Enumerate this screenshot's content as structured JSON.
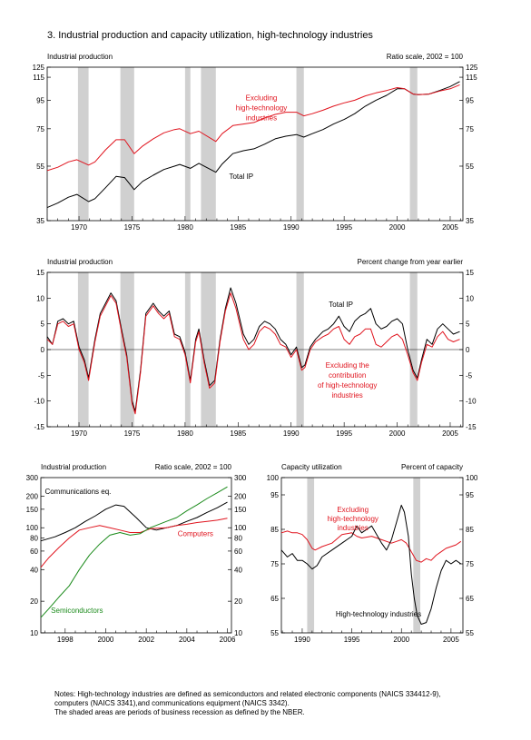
{
  "figure": {
    "title": "3.  Industrial production and capacity utilization, high-technology industries"
  },
  "colors": {
    "total": "#000000",
    "excluding": "#e0141e",
    "semis": "#1a8a1a",
    "recession": "#d0d0d0"
  },
  "notes": {
    "line1": "Notes:  High-technology industries are defined as semiconductors and related electronic components (NAICS 334412-9),",
    "line2": "computers (NAICS 3341),and communications equipment (NAICS 3342).",
    "line3": "The shaded areas are periods of business recession as defined by the NBER."
  },
  "chart_data": [
    {
      "type": "line",
      "title": "Industrial production",
      "subtitle": "Ratio scale, 2002 = 100",
      "yscale": "log",
      "xlim": [
        1967,
        2006.2
      ],
      "ylim": [
        35,
        125
      ],
      "yticks": [
        35,
        55,
        75,
        95,
        115,
        125
      ],
      "xticks": [
        1970,
        1975,
        1980,
        1985,
        1990,
        1995,
        2000,
        2005
      ],
      "recessions": [
        [
          1969.9,
          1970.9
        ],
        [
          1973.9,
          1975.2
        ],
        [
          1980.0,
          1980.5
        ],
        [
          1981.5,
          1982.9
        ],
        [
          1990.5,
          1991.2
        ],
        [
          2001.2,
          2001.9
        ]
      ],
      "annotations": [
        "Excluding",
        "high-technology",
        "industries",
        "Total IP"
      ],
      "series": [
        {
          "name": "Total IP",
          "color": "#000000",
          "x": [
            1967,
            1968,
            1969,
            1969.8,
            1970.9,
            1971.5,
            1972.5,
            1973.5,
            1974.3,
            1975.2,
            1976,
            1977,
            1978,
            1979,
            1979.5,
            1980.5,
            1981.3,
            1982.9,
            1983.5,
            1984.5,
            1985.5,
            1986.5,
            1987.5,
            1988.5,
            1989.5,
            1990.5,
            1991.2,
            1992,
            1993,
            1994,
            1995,
            1996,
            1997,
            1998,
            1999,
            2000,
            2000.7,
            2001.5,
            2002,
            2003,
            2004,
            2005,
            2005.9
          ],
          "y": [
            39,
            40.5,
            42.5,
            43.5,
            41,
            42,
            46,
            50.5,
            50,
            45.3,
            48.5,
            51,
            53.5,
            55,
            55.8,
            54,
            56.3,
            52.3,
            56,
            61,
            62.5,
            63.5,
            66,
            69,
            70.5,
            71.5,
            70,
            72,
            74.5,
            78,
            81,
            85,
            90.5,
            95,
            99,
            104.5,
            104.5,
            100,
            99.5,
            100,
            103,
            106.5,
            111
          ]
        },
        {
          "name": "Excluding high-technology industries",
          "color": "#e0141e",
          "x": [
            1967,
            1968,
            1969,
            1969.8,
            1970.9,
            1971.5,
            1972.5,
            1973.5,
            1974.3,
            1975.2,
            1976,
            1977,
            1978,
            1979,
            1979.5,
            1980.5,
            1981.3,
            1982.9,
            1983.5,
            1984.5,
            1985.5,
            1986.5,
            1987.5,
            1988.5,
            1989.5,
            1990.5,
            1991.2,
            1992,
            1993,
            1994,
            1995,
            1996,
            1997,
            1998,
            1999,
            2000,
            2000.7,
            2001.5,
            2002,
            2003,
            2004,
            2005,
            2005.9
          ],
          "y": [
            53,
            54.5,
            57,
            58,
            55.5,
            57,
            63,
            68.5,
            68.5,
            61,
            65,
            69,
            72.5,
            74.5,
            75,
            72,
            73.5,
            67.5,
            72,
            77,
            78,
            79,
            82,
            84.5,
            86,
            86,
            83.5,
            85,
            87.5,
            90.5,
            93,
            95,
            98.5,
            101,
            103,
            105.5,
            104.5,
            100,
            99.5,
            100,
            102.5,
            104.5,
            108
          ]
        }
      ]
    },
    {
      "type": "line",
      "title": "Industrial production",
      "subtitle": "Percent change from year earlier",
      "xlim": [
        1967,
        2006.2
      ],
      "ylim": [
        -15,
        15
      ],
      "yticks": [
        -15,
        -10,
        -5,
        0,
        5,
        10,
        15
      ],
      "xticks": [
        1970,
        1975,
        1980,
        1985,
        1990,
        1995,
        2000,
        2005
      ],
      "recessions": [
        [
          1969.9,
          1970.9
        ],
        [
          1973.9,
          1975.2
        ],
        [
          1980.0,
          1980.5
        ],
        [
          1981.5,
          1982.9
        ],
        [
          1990.5,
          1991.2
        ],
        [
          2001.2,
          2001.9
        ]
      ],
      "annotations": [
        "Total IP",
        "Excluding the",
        "contribution",
        "of high-technology",
        "industries"
      ],
      "series": [
        {
          "name": "Total IP",
          "color": "#000000",
          "x": [
            1967,
            1967.5,
            1968,
            1968.5,
            1969,
            1969.5,
            1970,
            1970.5,
            1970.9,
            1971.5,
            1972,
            1972.5,
            1973,
            1973.5,
            1974,
            1974.5,
            1975,
            1975.3,
            1975.8,
            1976.3,
            1977,
            1977.5,
            1978,
            1978.5,
            1979,
            1979.5,
            1980,
            1980.5,
            1981,
            1981.3,
            1981.8,
            1982.3,
            1982.8,
            1983.3,
            1983.8,
            1984.3,
            1984.8,
            1985.5,
            1986,
            1986.5,
            1987,
            1987.5,
            1988,
            1988.5,
            1989,
            1989.5,
            1990,
            1990.5,
            1991,
            1991.3,
            1991.8,
            1992.3,
            1993,
            1993.5,
            1994,
            1994.5,
            1995,
            1995.5,
            1996,
            1996.5,
            1997,
            1997.5,
            1998,
            1998.5,
            1999,
            1999.5,
            2000,
            2000.5,
            2001,
            2001.5,
            2001.9,
            2002.3,
            2002.8,
            2003.3,
            2003.8,
            2004.3,
            2004.8,
            2005.3,
            2005.9
          ],
          "y": [
            2.5,
            1,
            5.5,
            6,
            5,
            5.5,
            0.5,
            -2,
            -5.5,
            2,
            7,
            9,
            11,
            9.5,
            4,
            -1,
            -10,
            -12,
            -4,
            7,
            9,
            7.5,
            6.5,
            7.5,
            3,
            2.5,
            -0.5,
            -6,
            2,
            4,
            -2,
            -7,
            -6,
            2,
            8,
            12,
            9,
            3,
            1,
            2,
            4.5,
            5.5,
            5,
            4,
            2,
            1,
            -1,
            0.5,
            -3.5,
            -3,
            0.5,
            2,
            3.5,
            4,
            5,
            6.5,
            4.5,
            3.5,
            5.5,
            6.5,
            7,
            8,
            5,
            4,
            4.5,
            5.5,
            6,
            5,
            0,
            -4,
            -5.5,
            -2,
            2,
            1,
            4,
            5,
            4,
            3,
            3.5
          ]
        },
        {
          "name": "Excluding the contribution of high-technology industries",
          "color": "#e0141e",
          "x": [
            1967,
            1967.5,
            1968,
            1968.5,
            1969,
            1969.5,
            1970,
            1970.5,
            1970.9,
            1971.5,
            1972,
            1972.5,
            1973,
            1973.5,
            1974,
            1974.5,
            1975,
            1975.3,
            1975.8,
            1976.3,
            1977,
            1977.5,
            1978,
            1978.5,
            1979,
            1979.5,
            1980,
            1980.5,
            1981,
            1981.3,
            1981.8,
            1982.3,
            1982.8,
            1983.3,
            1983.8,
            1984.3,
            1984.8,
            1985.5,
            1986,
            1986.5,
            1987,
            1987.5,
            1988,
            1988.5,
            1989,
            1989.5,
            1990,
            1990.5,
            1991,
            1991.3,
            1991.8,
            1992.3,
            1993,
            1993.5,
            1994,
            1994.5,
            1995,
            1995.5,
            1996,
            1996.5,
            1997,
            1997.5,
            1998,
            1998.5,
            1999,
            1999.5,
            2000,
            2000.5,
            2001,
            2001.5,
            2001.9,
            2002.3,
            2002.8,
            2003.3,
            2003.8,
            2004.3,
            2004.8,
            2005.3,
            2005.9
          ],
          "y": [
            2,
            1,
            5,
            5.5,
            4.5,
            5,
            0,
            -2.5,
            -6,
            1.5,
            6.5,
            8.5,
            10.5,
            9,
            3.5,
            -1.5,
            -10.5,
            -12.5,
            -4.5,
            6.5,
            8.5,
            7,
            6,
            7,
            2.5,
            2,
            -1,
            -6.5,
            1.5,
            3.5,
            -2.5,
            -7.5,
            -6.5,
            1.5,
            7.5,
            11,
            8,
            2,
            0,
            1,
            3.5,
            4.5,
            4,
            3,
            1,
            0.5,
            -1.5,
            0,
            -4,
            -3.5,
            0,
            1.5,
            2.5,
            3,
            4,
            4.5,
            2,
            1,
            2.5,
            3,
            4,
            4,
            1,
            0.5,
            1.5,
            2.5,
            3,
            2,
            -1,
            -4.5,
            -6,
            -2.5,
            1,
            0.5,
            2.5,
            3.5,
            2,
            1.5,
            2
          ]
        }
      ]
    },
    {
      "type": "line",
      "title": "Industrial production",
      "subtitle": "Ratio scale, 2002 = 100",
      "yscale": "log",
      "xlim": [
        1996.8,
        2006.2
      ],
      "ylim": [
        10,
        300
      ],
      "yticks": [
        10,
        20,
        40,
        60,
        80,
        100,
        150,
        200,
        300
      ],
      "xticks": [
        1998,
        2000,
        2002,
        2004,
        2006
      ],
      "series": [
        {
          "name": "Communications eq.",
          "color": "#000000",
          "x": [
            1996.8,
            1997.5,
            1998,
            1998.5,
            1999,
            1999.5,
            2000,
            2000.5,
            2000.9,
            2001.5,
            2002,
            2002.5,
            2003,
            2003.5,
            2004,
            2004.5,
            2005,
            2005.5,
            2006
          ],
          "y": [
            75,
            82,
            90,
            100,
            115,
            130,
            150,
            165,
            160,
            125,
            100,
            95,
            100,
            105,
            115,
            125,
            140,
            155,
            175
          ]
        },
        {
          "name": "Computers",
          "color": "#e0141e",
          "x": [
            1996.8,
            1997.2,
            1997.7,
            1998.2,
            1998.7,
            1999.2,
            1999.7,
            2000.2,
            2000.7,
            2001.2,
            2001.7,
            2002.2,
            2003,
            2003.5,
            2004,
            2004.5,
            2005,
            2005.5,
            2006
          ],
          "y": [
            42,
            52,
            65,
            80,
            95,
            100,
            105,
            100,
            95,
            90,
            90,
            98,
            100,
            105,
            108,
            112,
            115,
            118,
            123
          ]
        },
        {
          "name": "Semiconductors",
          "color": "#1a8a1a",
          "x": [
            1996.8,
            1997.2,
            1997.7,
            1998.2,
            1998.7,
            1999.2,
            1999.7,
            2000.2,
            2000.7,
            2001.2,
            2001.7,
            2002.2,
            2003,
            2003.5,
            2004,
            2004.5,
            2005,
            2005.5,
            2006
          ],
          "y": [
            14,
            17,
            22,
            28,
            40,
            55,
            70,
            85,
            90,
            85,
            88,
            100,
            115,
            125,
            145,
            165,
            190,
            215,
            245
          ]
        }
      ]
    },
    {
      "type": "line",
      "title": "Capacity utilization",
      "subtitle": "Percent of capacity",
      "xlim": [
        1987.9,
        2006.2
      ],
      "ylim": [
        55,
        100
      ],
      "yticks": [
        55,
        65,
        75,
        85,
        95,
        100
      ],
      "xticks": [
        1990,
        1995,
        2000,
        2005
      ],
      "recessions": [
        [
          1990.5,
          1991.2
        ],
        [
          2001.2,
          2001.9
        ]
      ],
      "series": [
        {
          "name": "Excluding high-technology industries",
          "color": "#e0141e",
          "x": [
            1987.9,
            1988.5,
            1989,
            1989.5,
            1990,
            1990.5,
            1991,
            1991.3,
            1992,
            1993,
            1994,
            1995,
            1995.5,
            1996,
            1997,
            1998,
            1999,
            1999.5,
            2000,
            2000.5,
            2001,
            2001.5,
            2002,
            2002.5,
            2003,
            2003.5,
            2004,
            2004.5,
            2005,
            2005.5,
            2006
          ],
          "y": [
            84,
            84.5,
            84,
            84,
            83.5,
            82,
            79.5,
            79,
            80,
            81,
            83.5,
            84,
            83,
            82.5,
            83,
            82,
            81,
            81.5,
            82,
            81,
            78.5,
            76,
            75.5,
            76.5,
            76,
            77.5,
            78.5,
            79.5,
            80,
            80.5,
            81.5
          ]
        },
        {
          "name": "High-technology industries",
          "color": "#000000",
          "x": [
            1987.9,
            1988.5,
            1989,
            1989.5,
            1990,
            1990.5,
            1991,
            1991.5,
            1992,
            1993,
            1994,
            1995,
            1995.5,
            1996,
            1997,
            1998,
            1998.5,
            1999,
            1999.5,
            2000,
            2000.3,
            2000.7,
            2001,
            2001.3,
            2001.6,
            2002,
            2002.5,
            2003,
            2003.5,
            2004,
            2004.5,
            2005,
            2005.5,
            2006
          ],
          "y": [
            79,
            77,
            78,
            76,
            76,
            75,
            73.5,
            74.5,
            77,
            79,
            81,
            83,
            86,
            84,
            86,
            81,
            79,
            82,
            87,
            92,
            90,
            83,
            72,
            65,
            60,
            57.5,
            58,
            62,
            68,
            73,
            76,
            75,
            76,
            75
          ]
        }
      ]
    }
  ]
}
